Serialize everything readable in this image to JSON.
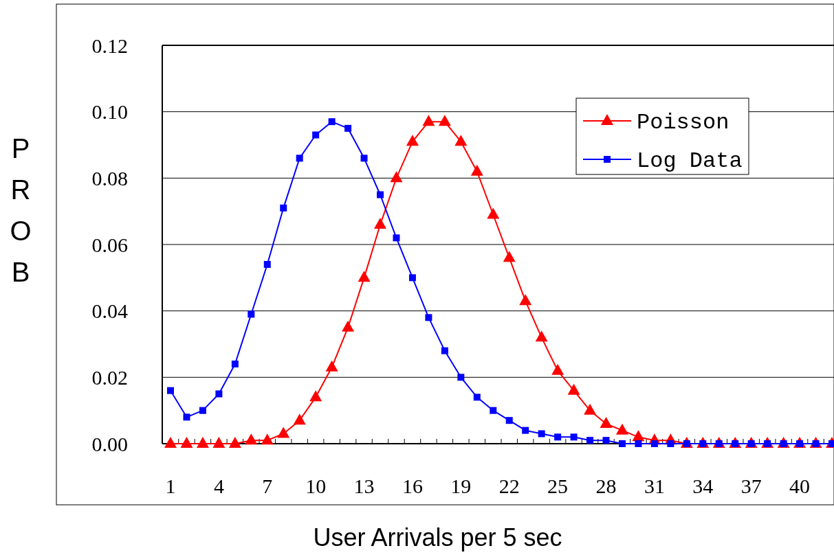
{
  "chart_data": {
    "type": "line",
    "xlabel": "User Arrivals per 5 sec",
    "ylabel": "PROB",
    "categories": [
      "1",
      null,
      null,
      "4",
      null,
      null,
      "7",
      null,
      null,
      "10",
      null,
      null,
      "13",
      null,
      null,
      "16",
      null,
      null,
      "19",
      null,
      null,
      "22",
      null,
      null,
      "25",
      null,
      null,
      "28",
      null,
      null,
      "31",
      null,
      null,
      "34",
      null,
      null,
      "37",
      null,
      null,
      "40",
      null,
      null
    ],
    "series": [
      {
        "name": "Poisson",
        "color": "#ff0000",
        "marker": "triangle",
        "values": [
          0,
          0,
          0,
          0,
          0,
          0.001,
          0.001,
          0.003,
          0.007,
          0.014,
          0.023,
          0.035,
          0.05,
          0.066,
          0.08,
          0.091,
          0.097,
          0.097,
          0.091,
          0.082,
          0.069,
          0.056,
          0.043,
          0.032,
          0.022,
          0.016,
          0.01,
          0.006,
          0.004,
          0.002,
          0.001,
          0.001,
          0,
          0,
          0,
          0,
          0,
          0,
          0,
          0,
          0,
          0
        ]
      },
      {
        "name": "Log Data",
        "color": "#0000ff",
        "marker": "square",
        "values": [
          0.016,
          0.008,
          0.01,
          0.015,
          0.024,
          0.039,
          0.054,
          0.071,
          0.086,
          0.093,
          0.097,
          0.095,
          0.086,
          0.075,
          0.062,
          0.05,
          0.038,
          0.028,
          0.02,
          0.014,
          0.01,
          0.007,
          0.004,
          0.003,
          0.002,
          0.002,
          0.001,
          0.001,
          0,
          0,
          0,
          0,
          0,
          0,
          0,
          0,
          0,
          0,
          0,
          0,
          0,
          0
        ]
      }
    ],
    "ylim": [
      0,
      0.12
    ],
    "yticks": [
      {
        "value": 0,
        "label": "0.00"
      },
      {
        "value": 0.02,
        "label": "0.02"
      },
      {
        "value": 0.04,
        "label": "0.04"
      },
      {
        "value": 0.06,
        "label": "0.06"
      },
      {
        "value": 0.08,
        "label": "0.08"
      },
      {
        "value": 0.1,
        "label": "0.10"
      },
      {
        "value": 0.12,
        "label": "0.12"
      }
    ],
    "grid": "y",
    "legend": "top right",
    "line_style": "solid"
  }
}
